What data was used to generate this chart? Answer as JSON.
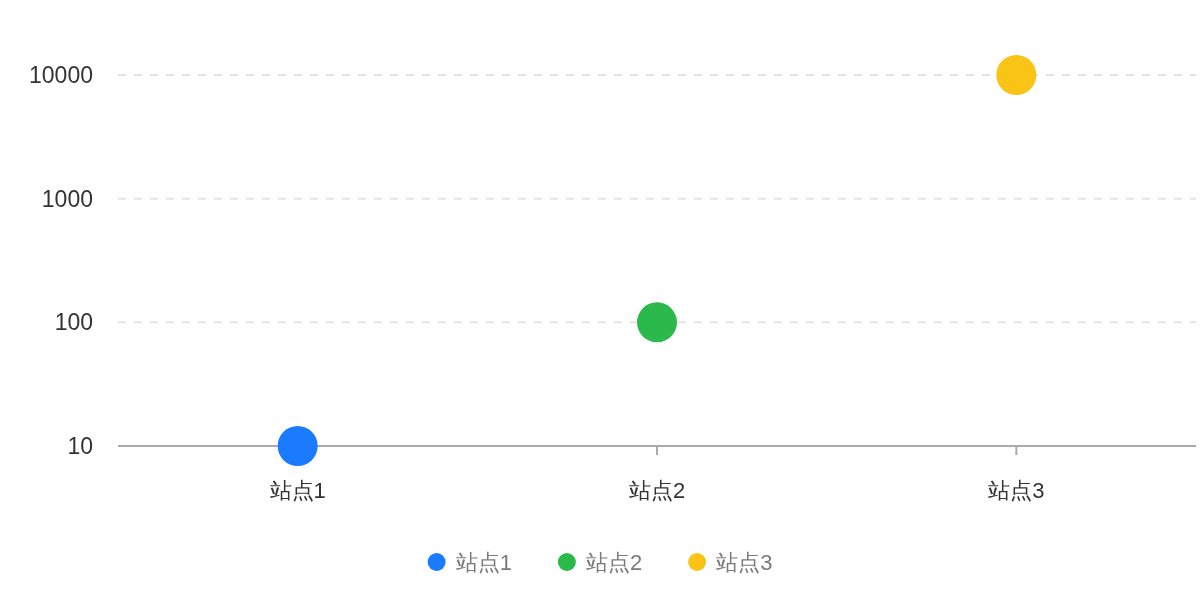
{
  "chart_data": {
    "type": "scatter",
    "categories": [
      "站点1",
      "站点2",
      "站点3"
    ],
    "series": [
      {
        "name": "站点1",
        "color": "#1b7bff",
        "values": [
          10,
          null,
          null
        ]
      },
      {
        "name": "站点2",
        "color": "#2cb94c",
        "values": [
          null,
          100,
          null
        ]
      },
      {
        "name": "站点3",
        "color": "#f9c416",
        "values": [
          null,
          null,
          10000
        ]
      }
    ],
    "log": "y",
    "ylim": [
      10,
      10000
    ],
    "yticks": [
      10,
      100,
      1000,
      10000
    ],
    "grid": "y",
    "legend": "bottom",
    "marker": "circle"
  }
}
